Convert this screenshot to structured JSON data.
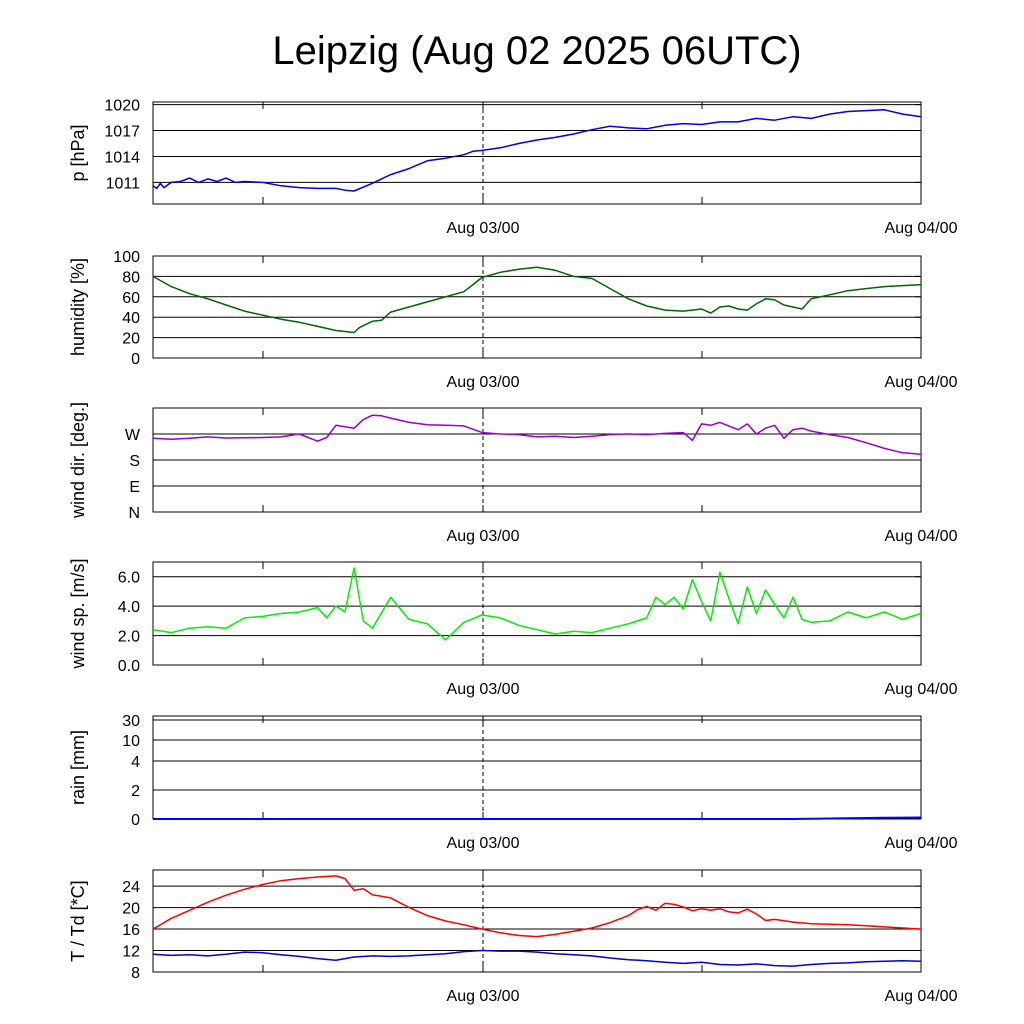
{
  "title": "Leipzig (Aug 02 2025 06UTC)",
  "x_tick_labels": [
    "Aug 03/00",
    "Aug 04/00"
  ],
  "colors": {
    "pressure": "#0000dd",
    "humidity": "#006400",
    "wind_dir": "#9400d3",
    "wind_speed": "#00ee00",
    "rain": "#0000ff",
    "temperature": "#ff0000",
    "dewpoint": "#0000cc"
  },
  "chart_data": [
    {
      "type": "line",
      "ylabel": "p [hPa]",
      "x_unit": "hours since Aug 02 06UTC",
      "xlim": [
        0,
        42
      ],
      "ylim": [
        1008.5,
        1020.3
      ],
      "y_ticks": [
        1011,
        1014,
        1017,
        1020
      ],
      "y_tick_labels": [
        "1011",
        "1014",
        "1017",
        "1020"
      ],
      "series": [
        {
          "color_key": "pressure",
          "x": [
            0,
            0.2,
            0.4,
            0.6,
            0.8,
            1,
            1.5,
            2,
            2.5,
            3,
            3.5,
            4,
            4.5,
            5,
            6,
            7,
            8,
            9,
            10,
            10.5,
            11,
            12,
            13,
            14,
            15,
            16,
            17,
            17.5,
            18,
            19,
            20,
            21,
            22,
            23,
            24,
            25,
            26,
            27,
            28,
            29,
            30,
            31,
            32,
            33,
            34,
            35,
            36,
            37,
            38,
            39,
            40,
            41,
            42
          ],
          "y": [
            1010.6,
            1010.3,
            1010.9,
            1010.4,
            1010.7,
            1011.0,
            1011.1,
            1011.5,
            1011.0,
            1011.4,
            1011.1,
            1011.5,
            1011.0,
            1011.1,
            1011.0,
            1010.6,
            1010.4,
            1010.3,
            1010.3,
            1010.1,
            1010.0,
            1010.9,
            1011.9,
            1012.6,
            1013.5,
            1013.8,
            1014.2,
            1014.6,
            1014.7,
            1015.0,
            1015.5,
            1015.9,
            1016.2,
            1016.6,
            1017.1,
            1017.5,
            1017.3,
            1017.2,
            1017.6,
            1017.8,
            1017.7,
            1018.0,
            1018.0,
            1018.4,
            1018.2,
            1018.6,
            1018.4,
            1018.9,
            1019.2,
            1019.3,
            1019.4,
            1018.9,
            1018.6
          ]
        }
      ]
    },
    {
      "type": "line",
      "ylabel": "humidity [%]",
      "xlim": [
        0,
        42
      ],
      "ylim": [
        0,
        100
      ],
      "y_ticks": [
        0,
        20,
        40,
        60,
        80,
        100
      ],
      "y_tick_labels": [
        "0",
        "20",
        "40",
        "60",
        "80",
        "100"
      ],
      "series": [
        {
          "color_key": "humidity",
          "x": [
            0,
            1,
            2,
            3,
            4,
            5,
            6,
            7,
            8,
            9,
            10,
            11,
            11.3,
            12,
            12.5,
            13,
            14,
            15,
            16,
            17,
            17.5,
            18,
            19,
            20,
            21,
            22,
            23,
            24,
            25,
            26,
            27,
            27.5,
            28,
            29,
            30,
            30.5,
            31,
            31.5,
            32,
            32.5,
            33,
            33.5,
            34,
            34.5,
            35,
            35.5,
            36,
            37,
            38,
            39,
            40,
            41,
            42
          ],
          "y": [
            80,
            70,
            63,
            58,
            52,
            46,
            42,
            38,
            35,
            31,
            27,
            25,
            30,
            36,
            37,
            45,
            50,
            55,
            60,
            65,
            72,
            79,
            84,
            87,
            89,
            86,
            80,
            78,
            68,
            58,
            51,
            49,
            47,
            46,
            48,
            44,
            50,
            51,
            48,
            47,
            53,
            58,
            57,
            52,
            50,
            48,
            58,
            62,
            66,
            68,
            70,
            71,
            72
          ]
        }
      ]
    },
    {
      "type": "line",
      "ylabel": "wind dir. [deg.]",
      "xlim": [
        0,
        42
      ],
      "ylim": [
        0,
        360
      ],
      "y_ticks": [
        0,
        90,
        180,
        270
      ],
      "y_tick_labels": [
        "N",
        "E",
        "S",
        "W"
      ],
      "series": [
        {
          "color_key": "wind_dir",
          "x": [
            0,
            1,
            2,
            3,
            4,
            5,
            6,
            7,
            8,
            9,
            9.5,
            10,
            11,
            11.5,
            12,
            12.5,
            13,
            14,
            15,
            16,
            17,
            18,
            19,
            20,
            21,
            22,
            23,
            24,
            25,
            26,
            27,
            28,
            29,
            29.5,
            30,
            30.5,
            31,
            32,
            32.5,
            33,
            33.5,
            34,
            34.5,
            35,
            35.5,
            36,
            37,
            38,
            39,
            40,
            41,
            42
          ],
          "y": [
            255,
            252,
            255,
            260,
            256,
            257,
            258,
            260,
            270,
            245,
            258,
            300,
            290,
            320,
            335,
            333,
            325,
            310,
            302,
            300,
            298,
            275,
            270,
            268,
            260,
            262,
            258,
            262,
            268,
            270,
            268,
            272,
            275,
            248,
            305,
            300,
            310,
            285,
            305,
            270,
            290,
            300,
            255,
            285,
            290,
            280,
            268,
            258,
            240,
            220,
            205,
            200
          ]
        }
      ]
    },
    {
      "type": "line",
      "ylabel": "wind sp. [m/s]",
      "xlim": [
        0,
        42
      ],
      "ylim": [
        0,
        7
      ],
      "y_ticks": [
        0,
        2,
        4,
        6
      ],
      "y_tick_labels": [
        "0.0",
        "2.0",
        "4.0",
        "6.0"
      ],
      "series": [
        {
          "color_key": "wind_speed",
          "x": [
            0,
            1,
            2,
            3,
            4,
            5,
            6,
            7,
            8,
            9,
            9.5,
            10,
            10.5,
            11,
            11.5,
            12,
            13,
            14,
            15,
            16,
            17,
            18,
            19,
            20,
            21,
            22,
            23,
            24,
            25,
            26,
            27,
            27.5,
            28,
            28.5,
            29,
            29.5,
            30,
            30.5,
            31,
            31.5,
            32,
            32.5,
            33,
            33.5,
            34,
            34.5,
            35,
            35.5,
            36,
            37,
            38,
            39,
            40,
            41,
            42
          ],
          "y": [
            2.4,
            2.2,
            2.5,
            2.6,
            2.5,
            3.2,
            3.3,
            3.5,
            3.6,
            3.9,
            3.2,
            4.0,
            3.6,
            6.6,
            3.0,
            2.5,
            4.6,
            3.1,
            2.8,
            1.7,
            2.9,
            3.4,
            3.2,
            2.7,
            2.4,
            2.1,
            2.3,
            2.2,
            2.5,
            2.8,
            3.2,
            4.6,
            4.1,
            4.6,
            3.8,
            5.8,
            4.3,
            3.0,
            6.3,
            4.5,
            2.8,
            5.3,
            3.5,
            5.1,
            4.1,
            3.2,
            4.6,
            3.1,
            2.9,
            3.0,
            3.6,
            3.2,
            3.6,
            3.1,
            3.5
          ]
        }
      ]
    },
    {
      "type": "line",
      "ylabel": "rain [mm]",
      "xlim": [
        0,
        42
      ],
      "ylim": [
        0,
        31
      ],
      "y_ticks": [
        0,
        2,
        4,
        10,
        30
      ],
      "y_tick_labels": [
        "0",
        "2",
        "4",
        "10",
        "30"
      ],
      "series": [
        {
          "color_key": "rain",
          "x": [
            0,
            35,
            38,
            40,
            42
          ],
          "y": [
            0,
            0,
            0.05,
            0.08,
            0.1
          ]
        }
      ]
    },
    {
      "type": "line",
      "ylabel": "T / Td [*C]",
      "xlim": [
        0,
        42
      ],
      "ylim": [
        8,
        27
      ],
      "y_ticks": [
        8,
        12,
        16,
        20,
        24
      ],
      "y_tick_labels": [
        "8",
        "12",
        "16",
        "20",
        "24"
      ],
      "series": [
        {
          "color_key": "temperature",
          "x": [
            0,
            1,
            2,
            3,
            4,
            5,
            6,
            7,
            8,
            9,
            10,
            10.5,
            11,
            11.5,
            12,
            13,
            14,
            15,
            16,
            17,
            18,
            19,
            20,
            21,
            22,
            23,
            24,
            25,
            26,
            26.5,
            27,
            27.5,
            28,
            28.5,
            29,
            29.5,
            30,
            30.5,
            31,
            31.5,
            32,
            32.5,
            33,
            33.5,
            34,
            35,
            36,
            37,
            38,
            39,
            40,
            41,
            42
          ],
          "y": [
            16.0,
            18.0,
            19.5,
            21.0,
            22.3,
            23.4,
            24.3,
            25.0,
            25.4,
            25.7,
            25.9,
            25.4,
            23.2,
            23.5,
            22.4,
            21.8,
            20.0,
            18.5,
            17.5,
            16.8,
            16.0,
            15.3,
            14.8,
            14.6,
            15.0,
            15.6,
            16.2,
            17.2,
            18.5,
            19.6,
            20.2,
            19.5,
            20.8,
            20.6,
            20.1,
            19.4,
            19.8,
            19.5,
            19.8,
            19.2,
            19.0,
            19.7,
            18.8,
            17.6,
            17.8,
            17.3,
            17.0,
            16.9,
            16.8,
            16.6,
            16.4,
            16.2,
            16.0
          ]
        },
        {
          "color_key": "dewpoint",
          "x": [
            0,
            1,
            2,
            3,
            4,
            5,
            6,
            7,
            8,
            9,
            10,
            11,
            12,
            13,
            14,
            15,
            16,
            17,
            18,
            19,
            20,
            21,
            22,
            23,
            24,
            25,
            26,
            27,
            28,
            29,
            30,
            31,
            32,
            33,
            34,
            35,
            36,
            37,
            38,
            39,
            40,
            41,
            42
          ],
          "y": [
            11.3,
            11.1,
            11.2,
            11.0,
            11.3,
            11.7,
            11.6,
            11.2,
            10.9,
            10.5,
            10.2,
            10.8,
            11.0,
            10.9,
            11.0,
            11.2,
            11.4,
            11.8,
            12.0,
            11.9,
            11.9,
            11.7,
            11.4,
            11.2,
            11.0,
            10.6,
            10.3,
            10.1,
            9.8,
            9.6,
            9.8,
            9.4,
            9.3,
            9.5,
            9.2,
            9.1,
            9.4,
            9.6,
            9.7,
            9.9,
            10.0,
            10.1,
            10.0
          ]
        }
      ]
    }
  ]
}
